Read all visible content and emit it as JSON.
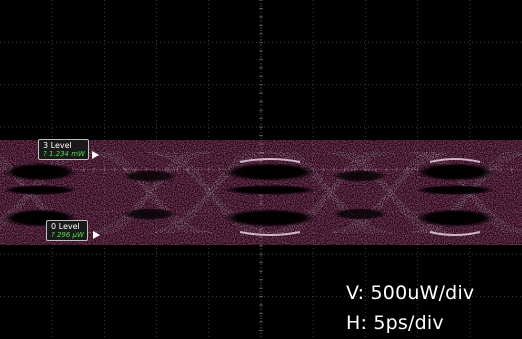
{
  "corner_text": "",
  "markers": {
    "high": {
      "label": "3 Level",
      "value": "? 1.234 mW"
    },
    "low": {
      "label": "0 Level",
      "value": "? 296 μW"
    }
  },
  "scale": {
    "vertical": "V: 500uW/div",
    "horizontal": "H: 5ps/div"
  },
  "colors": {
    "background": "#000000",
    "grid": "#3c3c3c",
    "trace": "#c0508c",
    "trace_bright": "#f0b0d6",
    "marker_value": "#55dd55"
  }
}
